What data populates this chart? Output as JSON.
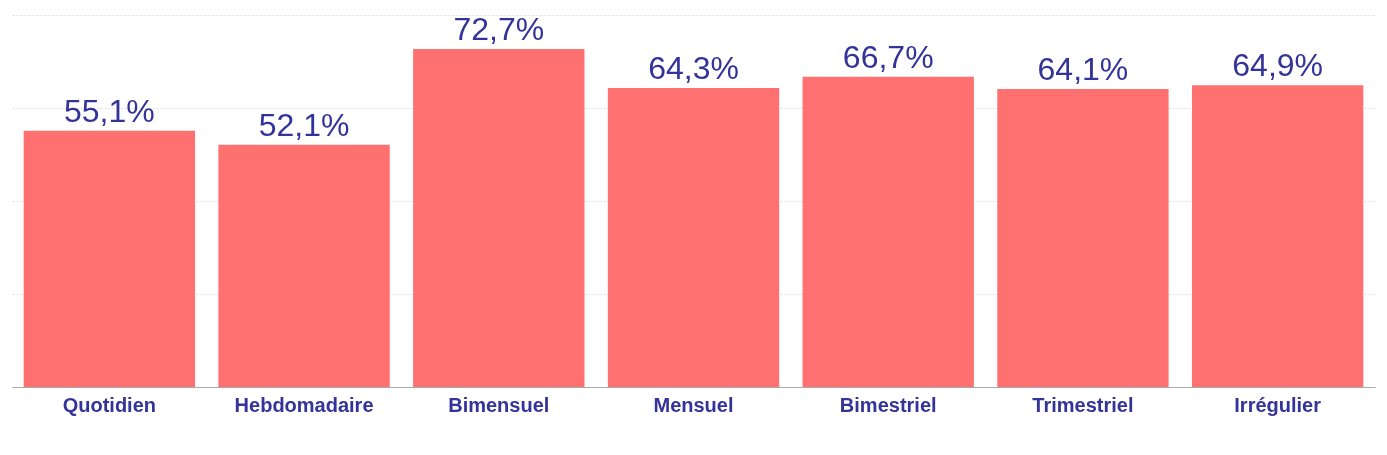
{
  "chart_data": {
    "type": "bar",
    "categories": [
      "Quotidien",
      "Hebdomadaire",
      "Bimensuel",
      "Mensuel",
      "Bimestriel",
      "Trimestriel",
      "Irrégulier"
    ],
    "values": [
      55.1,
      52.1,
      72.7,
      64.3,
      66.7,
      64.1,
      64.9
    ],
    "value_labels": [
      "55,1%",
      "52,1%",
      "72,7%",
      "64,3%",
      "66,7%",
      "64,1%",
      "64,9%"
    ],
    "color": "#ff7070",
    "ylim": [
      0,
      80
    ],
    "yticks": [
      {
        "value": 0,
        "label": null
      },
      {
        "value": 20,
        "label": null
      },
      {
        "value": 40,
        "label": null
      },
      {
        "value": 60,
        "label": null
      },
      {
        "value": 80,
        "label": null
      }
    ],
    "grid": "y",
    "tick_labels": "x"
  }
}
